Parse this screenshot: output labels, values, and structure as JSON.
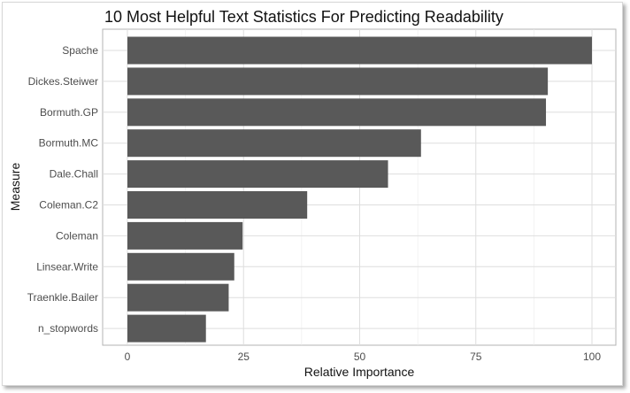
{
  "chart_data": {
    "type": "bar",
    "orientation": "horizontal",
    "title": "10 Most Helpful Text Statistics For Predicting Readability",
    "xlabel": "Relative Importance",
    "ylabel": "Measure",
    "xlim": [
      0,
      100
    ],
    "xticks": [
      0,
      25,
      50,
      75,
      100
    ],
    "grid": true,
    "bar_color": "#595959",
    "categories": [
      "Spache",
      "Dickes.Steiwer",
      "Bormuth.GP",
      "Bormuth.MC",
      "Dale.Chall",
      "Coleman.C2",
      "Coleman",
      "Linsear.Write",
      "Traenkle.Bailer",
      "n_stopwords"
    ],
    "values": [
      100,
      90.5,
      90.1,
      63.2,
      56.1,
      38.7,
      24.8,
      23.0,
      21.8,
      16.9
    ]
  }
}
